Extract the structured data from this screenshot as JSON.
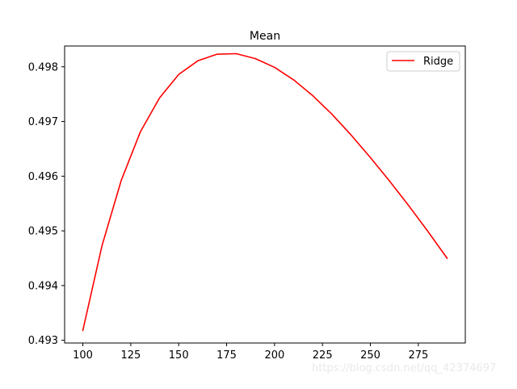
{
  "chart_data": {
    "type": "line",
    "title": "Mean",
    "xlabel": "",
    "ylabel": "",
    "xlim": [
      90.5,
      299.5
    ],
    "ylim": [
      0.49295,
      0.49838
    ],
    "x_ticks": [
      100,
      125,
      150,
      175,
      200,
      225,
      250,
      275
    ],
    "y_ticks": [
      0.493,
      0.494,
      0.495,
      0.496,
      0.497,
      0.498
    ],
    "y_tick_labels": [
      "0.493",
      "0.494",
      "0.495",
      "0.496",
      "0.497",
      "0.498"
    ],
    "grid": false,
    "legend": {
      "position": "top-right"
    },
    "series": [
      {
        "name": "Ridge",
        "color": "#ff0000",
        "x": [
          100,
          110,
          120,
          130,
          140,
          150,
          160,
          170,
          180,
          190,
          200,
          210,
          220,
          230,
          240,
          250,
          260,
          270,
          280,
          290
        ],
        "y": [
          0.49318,
          0.49473,
          0.49592,
          0.49681,
          0.49743,
          0.49786,
          0.49811,
          0.49823,
          0.49824,
          0.49815,
          0.49799,
          0.49776,
          0.49747,
          0.49713,
          0.49675,
          0.49634,
          0.49591,
          0.49546,
          0.49499,
          0.4945
        ]
      }
    ]
  },
  "watermark": "https://blog.csdn.net/qq_42374697"
}
